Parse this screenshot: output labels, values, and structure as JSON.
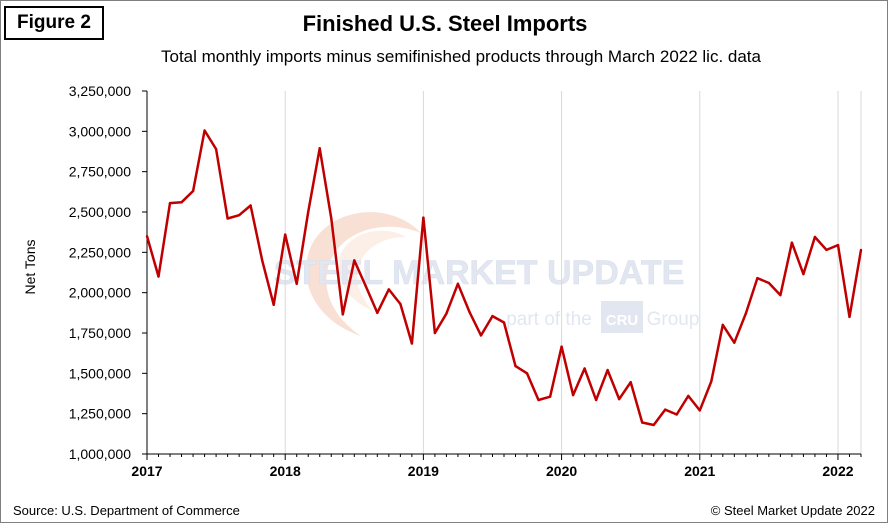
{
  "figure_label": "Figure 2",
  "source": "Source: U.S. Department of Commerce",
  "copyright": "© Steel Market Update 2022",
  "watermark": {
    "brand": "STEEL MARKET UPDATE",
    "tagline_prefix": "part of the",
    "group_logo": "CRU",
    "tagline_suffix": "Group"
  },
  "colors": {
    "line": "#c00000",
    "grid": "#d9d9d9",
    "axis": "#000000"
  },
  "chart_data": {
    "type": "line",
    "title": "Finished U.S. Steel Imports",
    "subtitle": "Total monthly imports minus semifinished  products through March 2022 lic. data",
    "ylabel": "Net Tons",
    "xlabel": "",
    "ylim": [
      1000000,
      3250000
    ],
    "yticks": [
      1000000,
      1250000,
      1500000,
      1750000,
      2000000,
      2250000,
      2500000,
      2750000,
      3000000,
      3250000
    ],
    "ytick_labels": [
      "1,000,000",
      "1,250,000",
      "1,500,000",
      "1,750,000",
      "2,000,000",
      "2,250,000",
      "2,500,000",
      "2,750,000",
      "3,000,000",
      "3,250,000"
    ],
    "xlim": [
      0,
      62
    ],
    "xticks": [
      0,
      12,
      24,
      36,
      48,
      60
    ],
    "xtick_labels": [
      "2017",
      "2018",
      "2019",
      "2020",
      "2021",
      "2022"
    ],
    "grid": "vertical",
    "series": [
      {
        "name": "Finished U.S. Steel Imports",
        "x_start": "2017-01",
        "values": [
          2350000,
          2100000,
          2555000,
          2560000,
          2630000,
          3005000,
          2890000,
          2460000,
          2480000,
          2540000,
          2200000,
          1925000,
          2360000,
          2055000,
          2500000,
          2895000,
          2460000,
          1865000,
          2200000,
          2040000,
          1875000,
          2020000,
          1930000,
          1685000,
          2465000,
          1750000,
          1870000,
          2055000,
          1880000,
          1735000,
          1855000,
          1815000,
          1545000,
          1500000,
          1335000,
          1355000,
          1665000,
          1365000,
          1530000,
          1335000,
          1520000,
          1340000,
          1445000,
          1195000,
          1180000,
          1275000,
          1245000,
          1360000,
          1270000,
          1450000,
          1800000,
          1690000,
          1870000,
          2090000,
          2060000,
          1985000,
          2310000,
          2115000,
          2345000,
          2265000,
          2295000,
          1850000,
          2265000
        ]
      }
    ]
  }
}
